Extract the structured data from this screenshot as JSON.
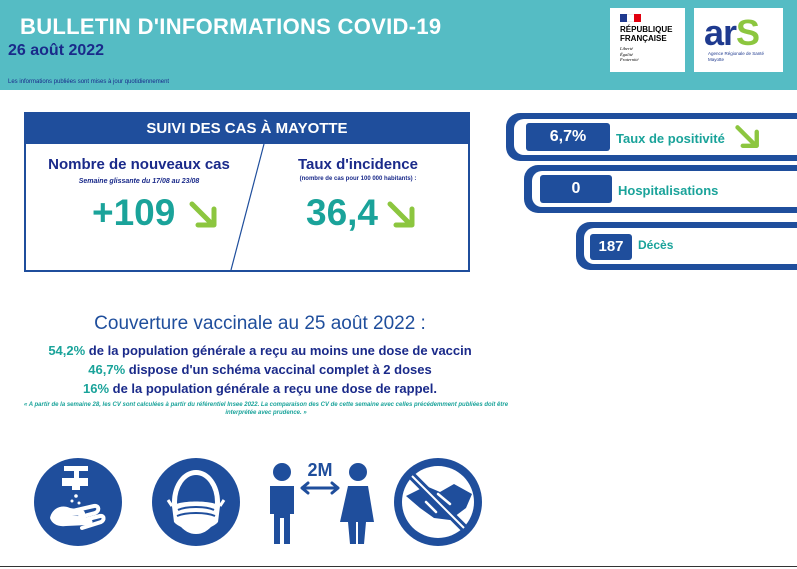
{
  "header": {
    "title": "BULLETIN D'INFORMATIONS COVID-19",
    "date": "26 août 2022",
    "note": "Les informations publiées sont mises à jour quotidiennement",
    "background_color": "#55bcc4"
  },
  "logos": {
    "republique": {
      "name": "RÉPUBLIQUE\nFRANÇAISE",
      "motto": [
        "Liberté",
        "Égalité",
        "Fraternité"
      ]
    },
    "ars": {
      "word_a": "ar",
      "word_s": "S",
      "subtitle": "Agence Régionale de Santé Mayotte"
    }
  },
  "cases": {
    "heading": "SUIVI DES CAS À MAYOTTE",
    "new_cases": {
      "label": "Nombre de nouveaux cas",
      "sublabel": "Semaine glissante du 17/08 au 23/08",
      "value": "+109",
      "trend_icon": "arrow-down-right-icon"
    },
    "incidence": {
      "label": "Taux d'incidence",
      "sublabel": "(nombre de cas pour 100 000 habitants) :",
      "value": "36,4",
      "trend_icon": "arrow-down-right-icon"
    }
  },
  "indicators": [
    {
      "value": "6,7%",
      "label": "Taux de positivité",
      "trend_icon": "arrow-down-right-icon"
    },
    {
      "value": "0",
      "label": "Hospitalisations"
    },
    {
      "value": "187",
      "label": "Décès"
    }
  ],
  "vaccination": {
    "title": "Couverture vaccinale au 25 août 2022 :",
    "lines": [
      {
        "pct": "54,2%",
        "text": " de la population générale a reçu au moins une dose de vaccin"
      },
      {
        "pct": "46,7%",
        "text": " dispose d'un schéma vaccinal complet à 2 doses"
      },
      {
        "pct": "16%",
        "text": " de la population générale a reçu une dose de rappel."
      }
    ],
    "footnote": "« A partir de la semaine 28, les CV sont calculées à partir du référentiel Insee 2022. La comparaison des CV de cette semaine avec celles précédemment publiées doit être interprétée avec prudence. »"
  },
  "gestures": {
    "distance_label": "2M",
    "icons": [
      "hand-washing-icon",
      "face-mask-icon",
      "distance-icon",
      "no-handshake-icon"
    ]
  },
  "colors": {
    "navy": "#1f4e9c",
    "dark_text": "#1a2a8a",
    "teal": "#1aa39a",
    "green_arrow": "#8cc63f"
  }
}
